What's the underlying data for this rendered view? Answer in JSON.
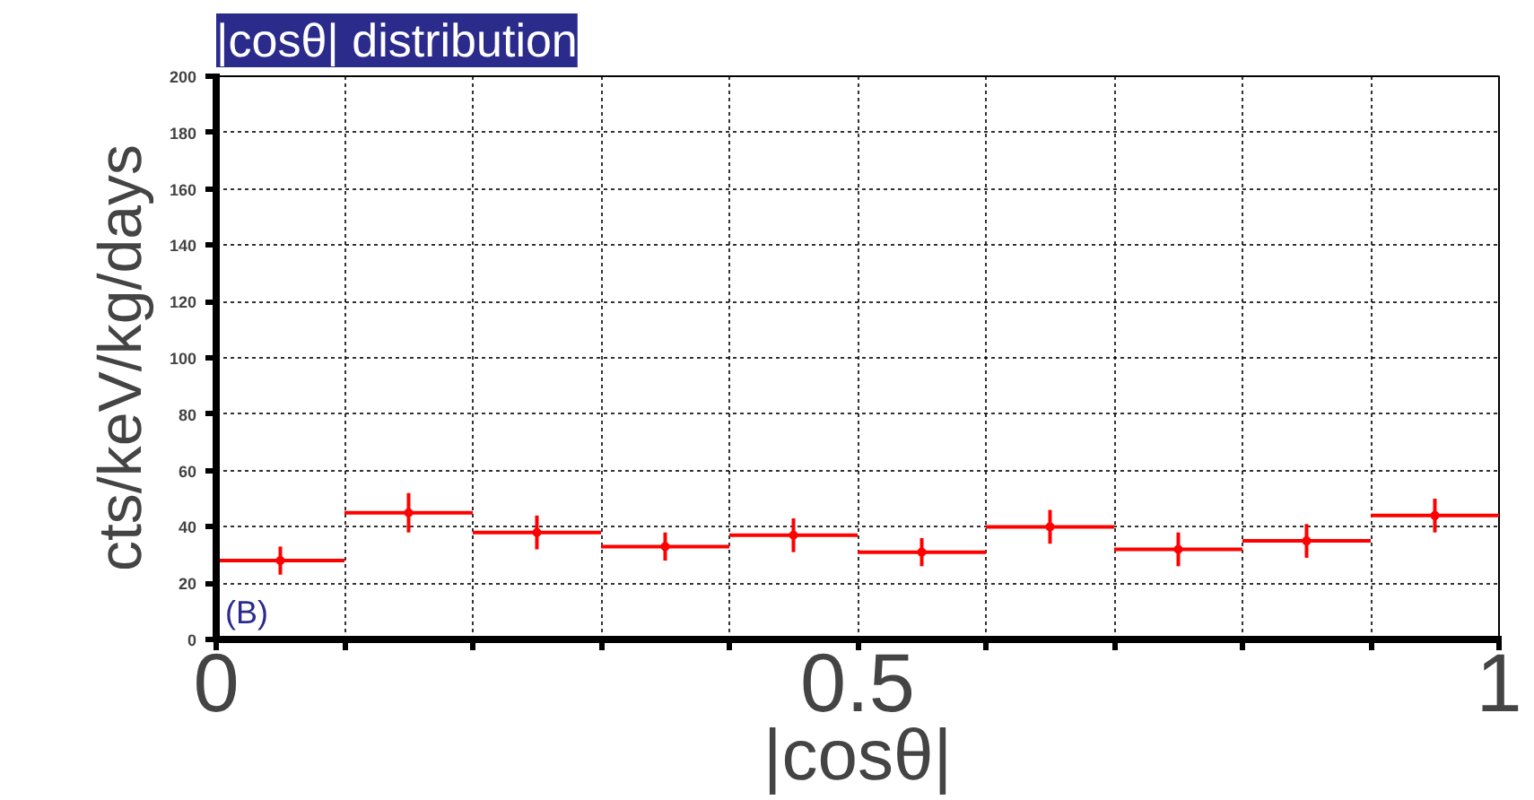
{
  "chart_data": {
    "type": "scatter",
    "title": "|cosθ| distribution",
    "xlabel": "|cosθ|",
    "ylabel": "cts/keV/kg/days",
    "x": [
      0.05,
      0.15,
      0.25,
      0.35,
      0.45,
      0.55,
      0.65,
      0.75,
      0.85,
      0.95
    ],
    "values": [
      28,
      45,
      38,
      33,
      37,
      31,
      40,
      32,
      35,
      44
    ],
    "errors": [
      5,
      7,
      6,
      5,
      6,
      5,
      6,
      6,
      6,
      6
    ],
    "xerrors": [
      0.05,
      0.05,
      0.05,
      0.05,
      0.05,
      0.05,
      0.05,
      0.05,
      0.05,
      0.05
    ],
    "color": "#ff0000",
    "marker": "circle",
    "xlim": [
      0,
      1
    ],
    "ylim": [
      0,
      200
    ],
    "xticks": [
      0,
      {
        "value": 0.1,
        "label": null
      },
      {
        "value": 0.2,
        "label": null
      },
      {
        "value": 0.3,
        "label": null
      },
      {
        "value": 0.4,
        "label": null
      },
      0.5,
      {
        "value": 0.6,
        "label": null
      },
      {
        "value": 0.7,
        "label": null
      },
      {
        "value": 0.8,
        "label": null
      },
      {
        "value": 0.9,
        "label": null
      },
      1
    ],
    "yticks": [
      0,
      20,
      40,
      60,
      80,
      100,
      120,
      140,
      160,
      180,
      200
    ],
    "grid": true,
    "annotations": [
      "(B)"
    ]
  }
}
